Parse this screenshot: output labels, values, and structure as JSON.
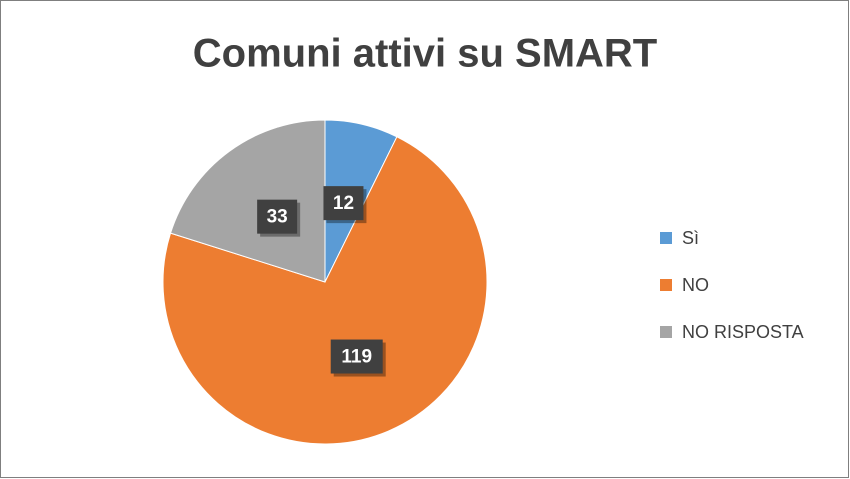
{
  "chart_data": {
    "type": "pie",
    "title": "Comuni attivi su SMART",
    "categories": [
      "Sì",
      "NO",
      "NO RISPOSTA"
    ],
    "values": [
      12,
      119,
      33
    ],
    "colors": [
      "#5b9bd5",
      "#ed7d31",
      "#a5a5a5"
    ],
    "legend": "right"
  }
}
